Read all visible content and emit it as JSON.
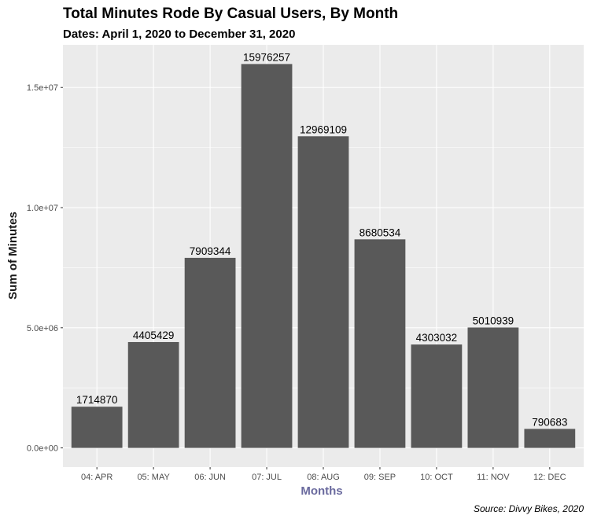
{
  "chart_data": {
    "type": "bar",
    "title": "Total Minutes Rode By Casual Users, By Month",
    "subtitle": "Dates: April 1, 2020 to December 31, 2020",
    "xlabel": "Months",
    "ylabel": "Sum of Minutes",
    "caption": "Source: Divvy Bikes, 2020",
    "categories": [
      "04: APR",
      "05: MAY",
      "06: JUN",
      "07: JUL",
      "08: AUG",
      "09: SEP",
      "10: OCT",
      "11: NOV",
      "12: DEC"
    ],
    "values": [
      1714870,
      4405429,
      7909344,
      15976257,
      12969109,
      8680534,
      4303032,
      5010939,
      790683
    ],
    "data_labels": [
      "1714870",
      "4405429",
      "7909344",
      "15976257",
      "12969109",
      "8680534",
      "4303032",
      "5010939",
      "790683"
    ],
    "ylim": [
      -798813,
      16775070
    ],
    "yticks": [
      0,
      5000000,
      10000000,
      15000000
    ],
    "ytick_labels": [
      "0.0e+00",
      "5.0e+06",
      "1.0e+07",
      "1.5e+07"
    ],
    "grid": true,
    "colors": {
      "bar": "#595959",
      "panel": "#ebebeb",
      "grid": "#ffffff",
      "xlabel": "#6a6a9e"
    }
  }
}
